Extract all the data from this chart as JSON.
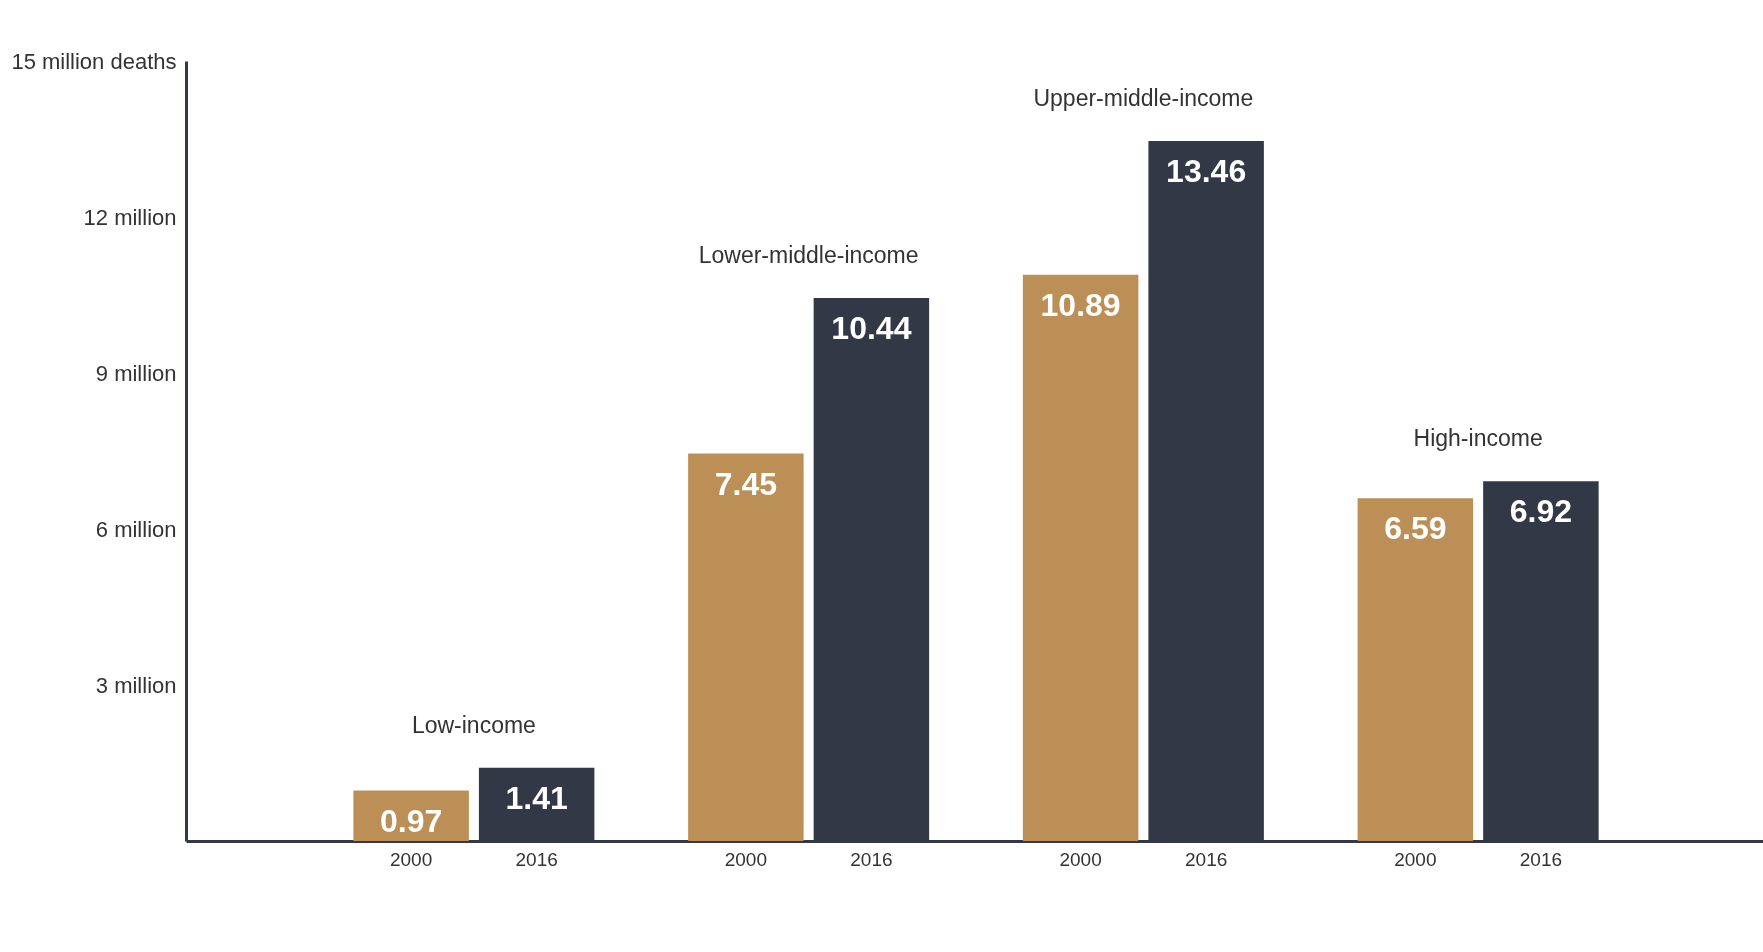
{
  "chart_data": {
    "type": "bar",
    "categories": [
      "Low-income",
      "Lower-middle-income",
      "Upper-middle-income",
      "High-income"
    ],
    "series": [
      {
        "name": "2000",
        "color": "#bc8f56",
        "values": [
          0.97,
          7.45,
          10.89,
          6.59
        ]
      },
      {
        "name": "2016",
        "color": "#333846",
        "values": [
          1.41,
          10.44,
          13.46,
          6.92
        ]
      }
    ],
    "ylim": [
      0,
      15
    ],
    "yticks": [
      {
        "value": 3,
        "label": "3 million"
      },
      {
        "value": 6,
        "label": "6 million"
      },
      {
        "value": 9,
        "label": "9 million"
      },
      {
        "value": 12,
        "label": "12 million"
      },
      {
        "value": 15,
        "label": "15 million deaths"
      }
    ],
    "data_labels": true
  }
}
